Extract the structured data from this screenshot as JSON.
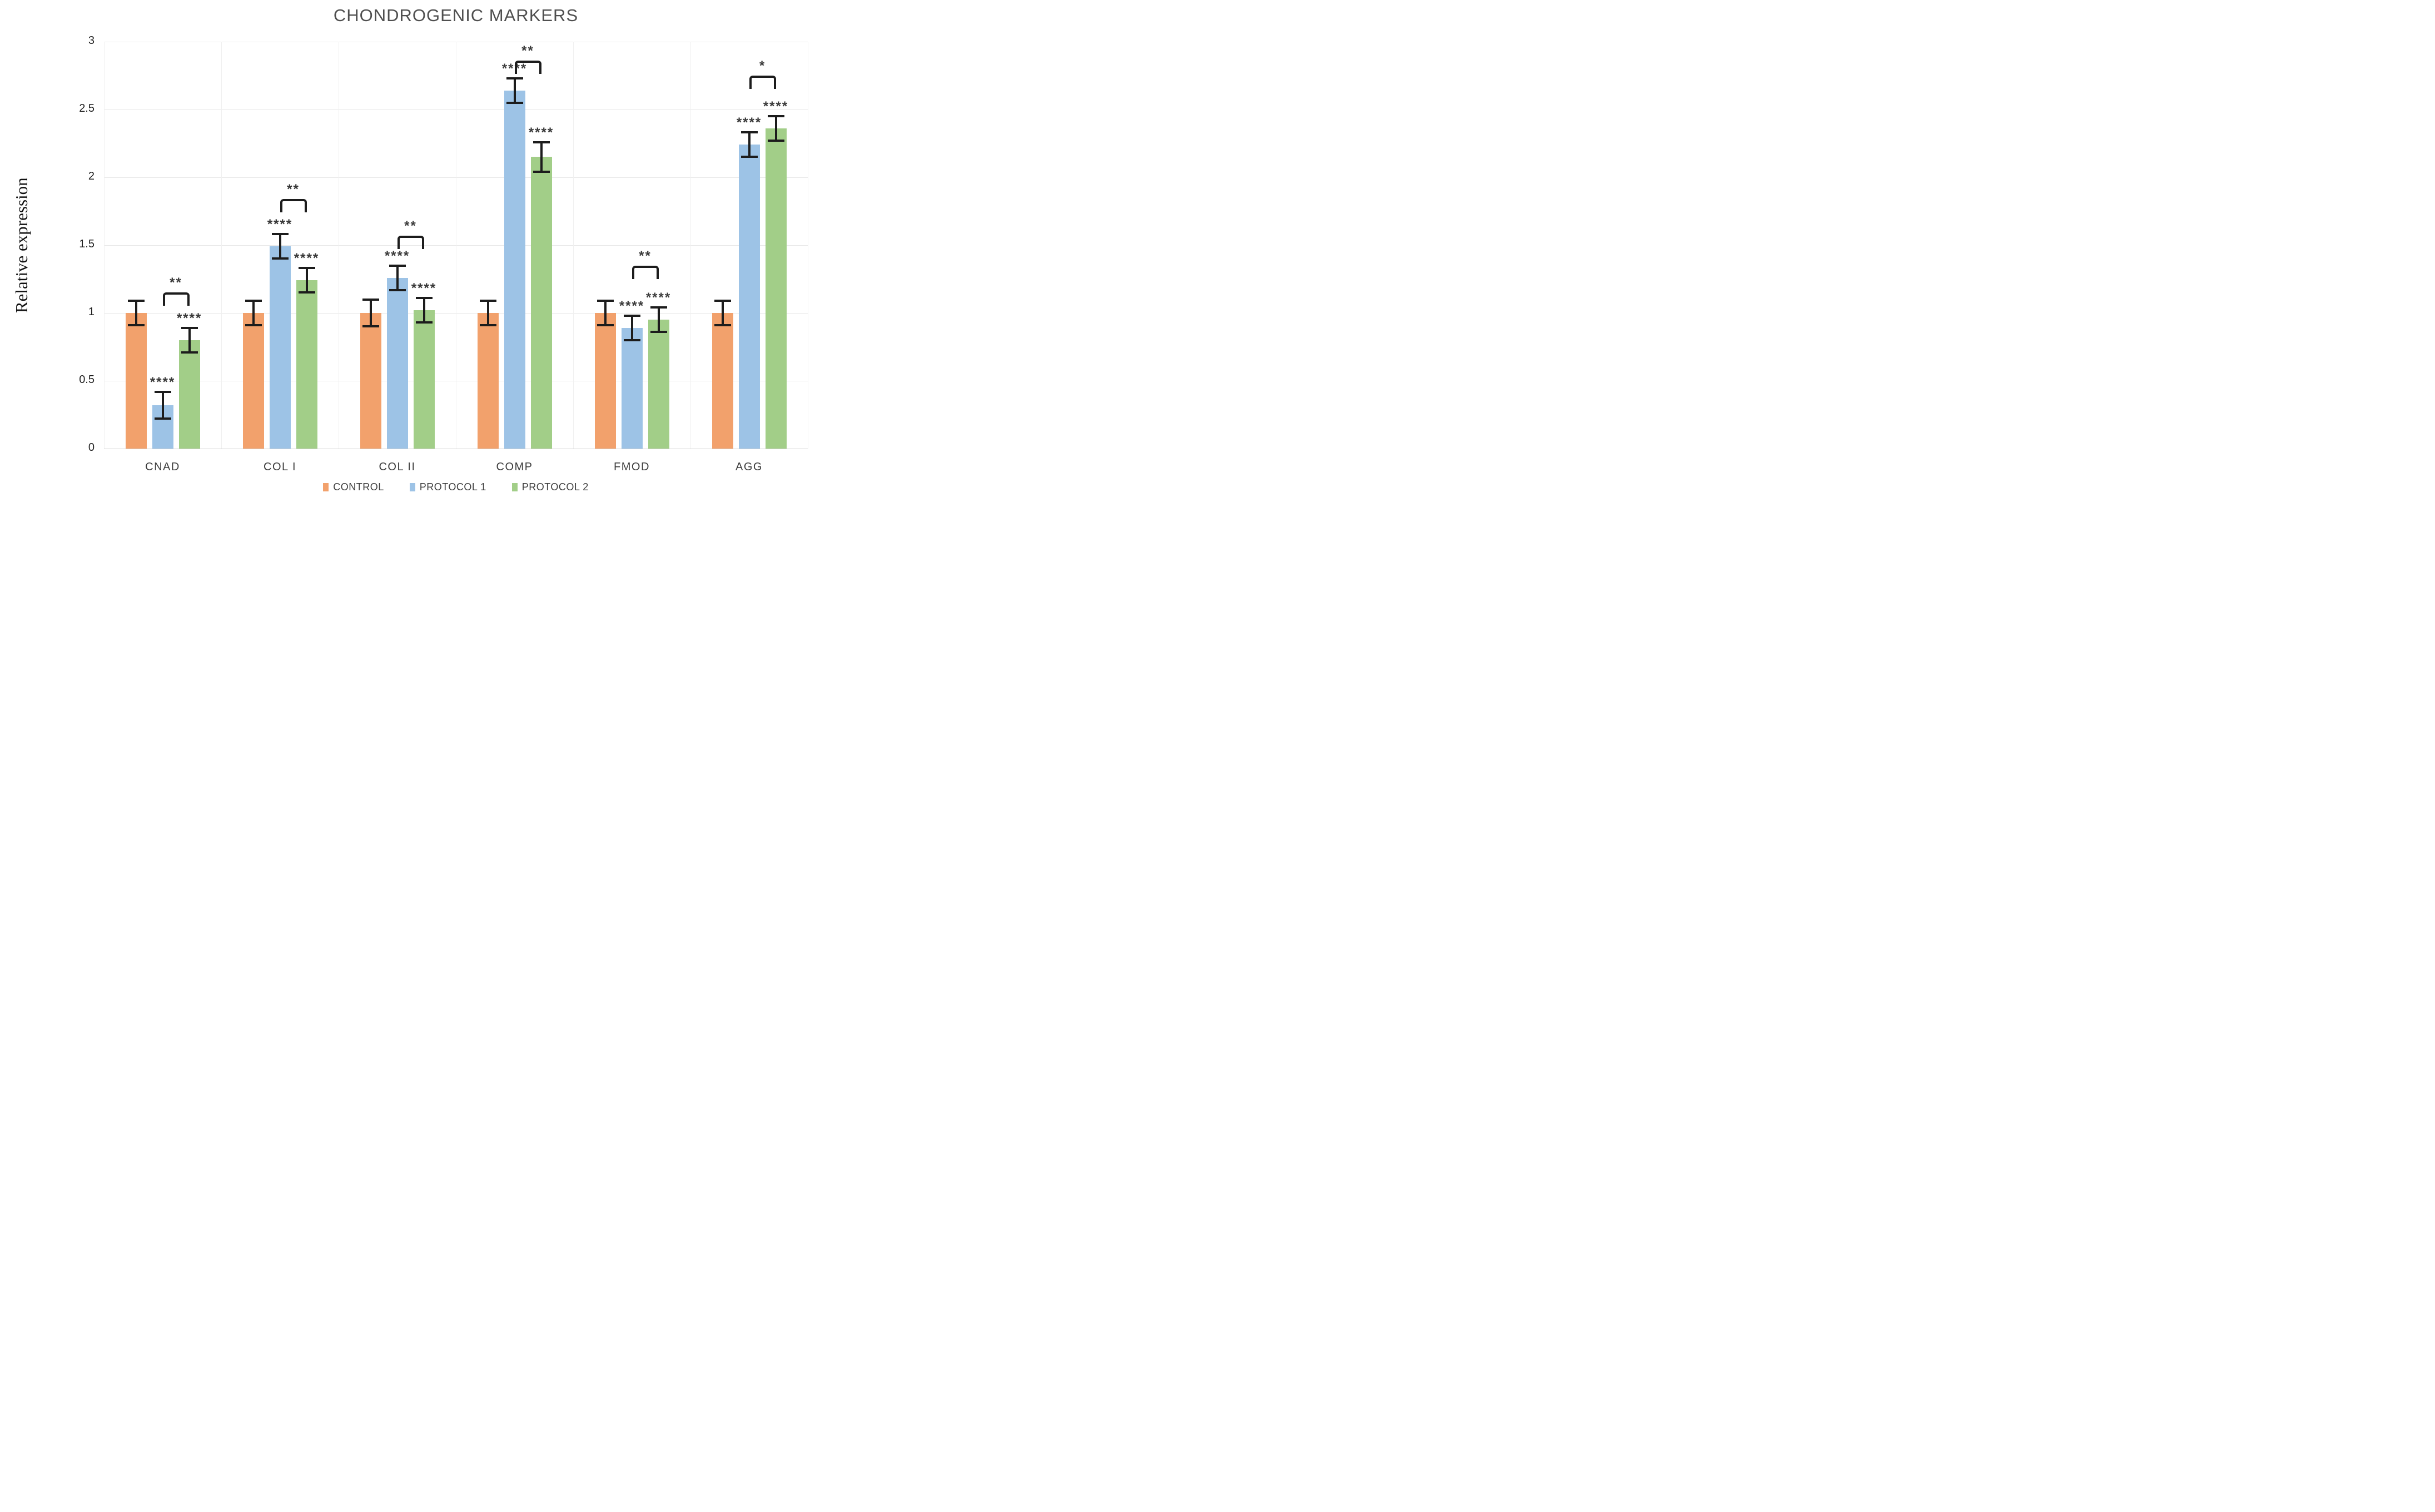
{
  "title": "CHONDROGENIC MARKERS",
  "y_axis": {
    "label": "Relative expression",
    "ticks": [
      "0",
      "0.5",
      "1",
      "1.5",
      "2",
      "2.5",
      "3"
    ],
    "min": 0,
    "max": 3,
    "step": 0.5
  },
  "legend": [
    {
      "label": "CONTROL",
      "color": "#F2A16C"
    },
    {
      "label": "PROTOCOL 1",
      "color": "#9DC3E6"
    },
    {
      "label": "PROTOCOL 2",
      "color": "#A2CE88"
    }
  ],
  "chart_data": {
    "type": "bar",
    "title": "CHONDROGENIC MARKERS",
    "xlabel": "",
    "ylabel": "Relative expression",
    "ylim": [
      0,
      3
    ],
    "grid": true,
    "legend_position": "bottom",
    "categories": [
      "CNAD",
      "COL I",
      "COL II",
      "COMP",
      "FMOD",
      "AGG"
    ],
    "series": [
      {
        "name": "CONTROL",
        "color": "#F2A16C",
        "values": [
          1.0,
          1.0,
          1.0,
          1.0,
          1.0,
          1.0
        ],
        "errors": [
          0.09,
          0.09,
          0.1,
          0.09,
          0.09,
          0.09
        ],
        "significance": [
          "",
          "",
          "",
          "",
          "",
          ""
        ]
      },
      {
        "name": "PROTOCOL 1",
        "color": "#9DC3E6",
        "values": [
          0.32,
          1.49,
          1.26,
          2.64,
          0.89,
          2.24
        ],
        "errors": [
          0.1,
          0.09,
          0.09,
          0.09,
          0.09,
          0.09
        ],
        "significance": [
          "****",
          "****",
          "****",
          "****",
          "****",
          "****"
        ]
      },
      {
        "name": "PROTOCOL 2",
        "color": "#A2CE88",
        "values": [
          0.8,
          1.24,
          1.02,
          2.15,
          0.95,
          2.36
        ],
        "errors": [
          0.09,
          0.09,
          0.09,
          0.11,
          0.09,
          0.09
        ],
        "significance": [
          "****",
          "****",
          "****",
          "****",
          "****",
          "****"
        ]
      }
    ],
    "comparisons": [
      {
        "category": "CNAD",
        "between": [
          "PROTOCOL 1",
          "PROTOCOL 2"
        ],
        "label": "**",
        "height": 1.15
      },
      {
        "category": "COL I",
        "between": [
          "PROTOCOL 1",
          "PROTOCOL 2"
        ],
        "label": "**",
        "height": 1.84
      },
      {
        "category": "COL II",
        "between": [
          "PROTOCOL 1",
          "PROTOCOL 2"
        ],
        "label": "**",
        "height": 1.57
      },
      {
        "category": "COMP",
        "between": [
          "PROTOCOL 1",
          "PROTOCOL 2"
        ],
        "label": "**",
        "height": 2.86
      },
      {
        "category": "FMOD",
        "between": [
          "PROTOCOL 1",
          "PROTOCOL 2"
        ],
        "label": "**",
        "height": 1.35
      },
      {
        "category": "AGG",
        "between": [
          "PROTOCOL 1",
          "PROTOCOL 2"
        ],
        "label": "*",
        "height": 2.75
      }
    ]
  }
}
